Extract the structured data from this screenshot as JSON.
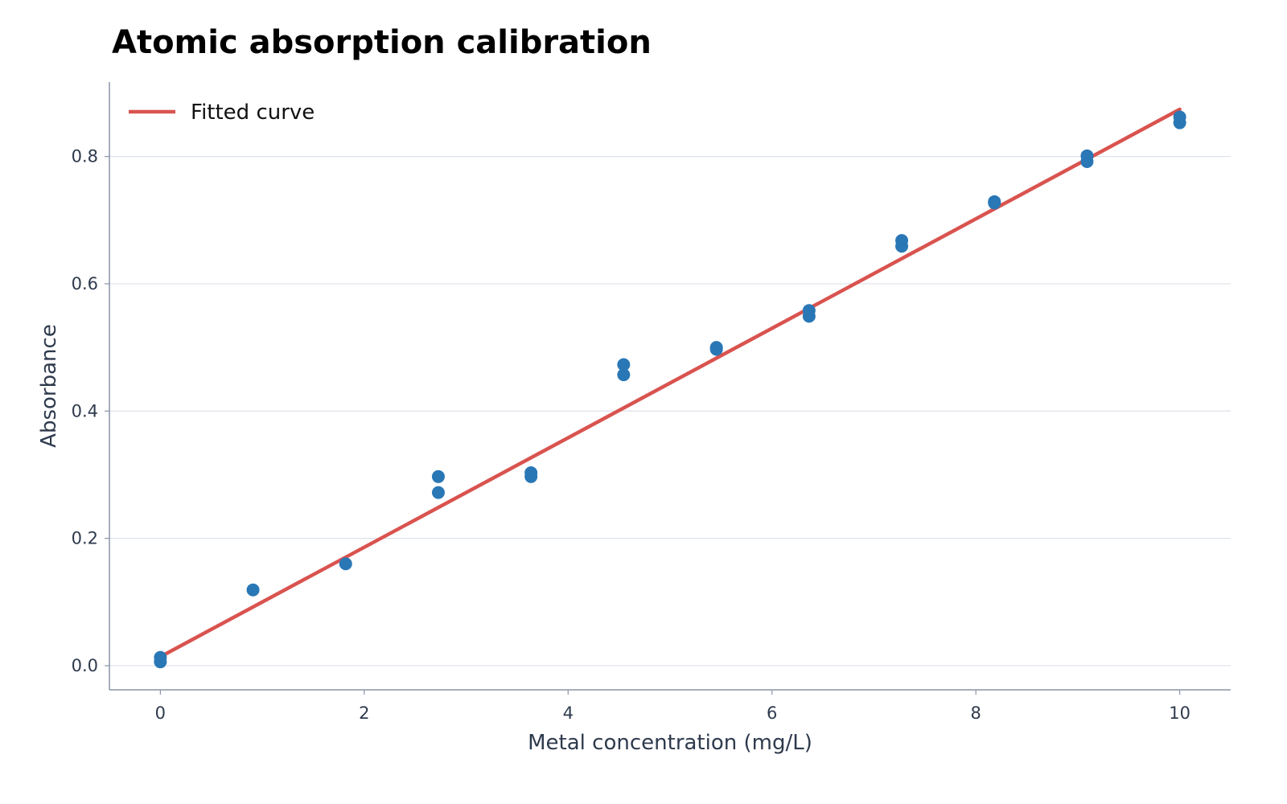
{
  "chart_data": {
    "type": "scatter",
    "title": "Atomic absorption calibration",
    "xlabel": "Metal concentration (mg/L)",
    "ylabel": "Absorbance",
    "xlim": [
      -0.5,
      10.5
    ],
    "ylim": [
      -0.038,
      0.917
    ],
    "xticks": [
      0,
      2,
      4,
      6,
      8,
      10
    ],
    "xtick_labels": [
      "0",
      "2",
      "4",
      "6",
      "8",
      "10"
    ],
    "yticks": [
      0.0,
      0.2,
      0.4,
      0.6,
      0.8
    ],
    "ytick_labels": [
      "0.0",
      "0.2",
      "0.4",
      "0.6",
      "0.8"
    ],
    "grid": "horizontal",
    "legend": {
      "placement": "top-left",
      "entries": [
        "Fitted curve"
      ]
    },
    "series": [
      {
        "kind": "points",
        "color": "#2a77b6",
        "points": [
          [
            0,
            0.013
          ],
          [
            0,
            0.006
          ],
          [
            0.909,
            0.119
          ],
          [
            1.818,
            0.16
          ],
          [
            2.727,
            0.297
          ],
          [
            2.727,
            0.272
          ],
          [
            3.636,
            0.303
          ],
          [
            3.636,
            0.297
          ],
          [
            4.545,
            0.473
          ],
          [
            4.545,
            0.457
          ],
          [
            5.455,
            0.5
          ],
          [
            5.455,
            0.497
          ],
          [
            6.364,
            0.558
          ],
          [
            6.364,
            0.549
          ],
          [
            7.273,
            0.668
          ],
          [
            7.273,
            0.659
          ],
          [
            8.182,
            0.729
          ],
          [
            8.182,
            0.727
          ],
          [
            9.091,
            0.801
          ],
          [
            9.091,
            0.792
          ],
          [
            10,
            0.862
          ],
          [
            10,
            0.853
          ]
        ]
      },
      {
        "kind": "line",
        "name": "Fitted curve",
        "color": "#d9534f",
        "x": [
          0,
          10
        ],
        "y": [
          0.014,
          0.874
        ]
      }
    ]
  }
}
